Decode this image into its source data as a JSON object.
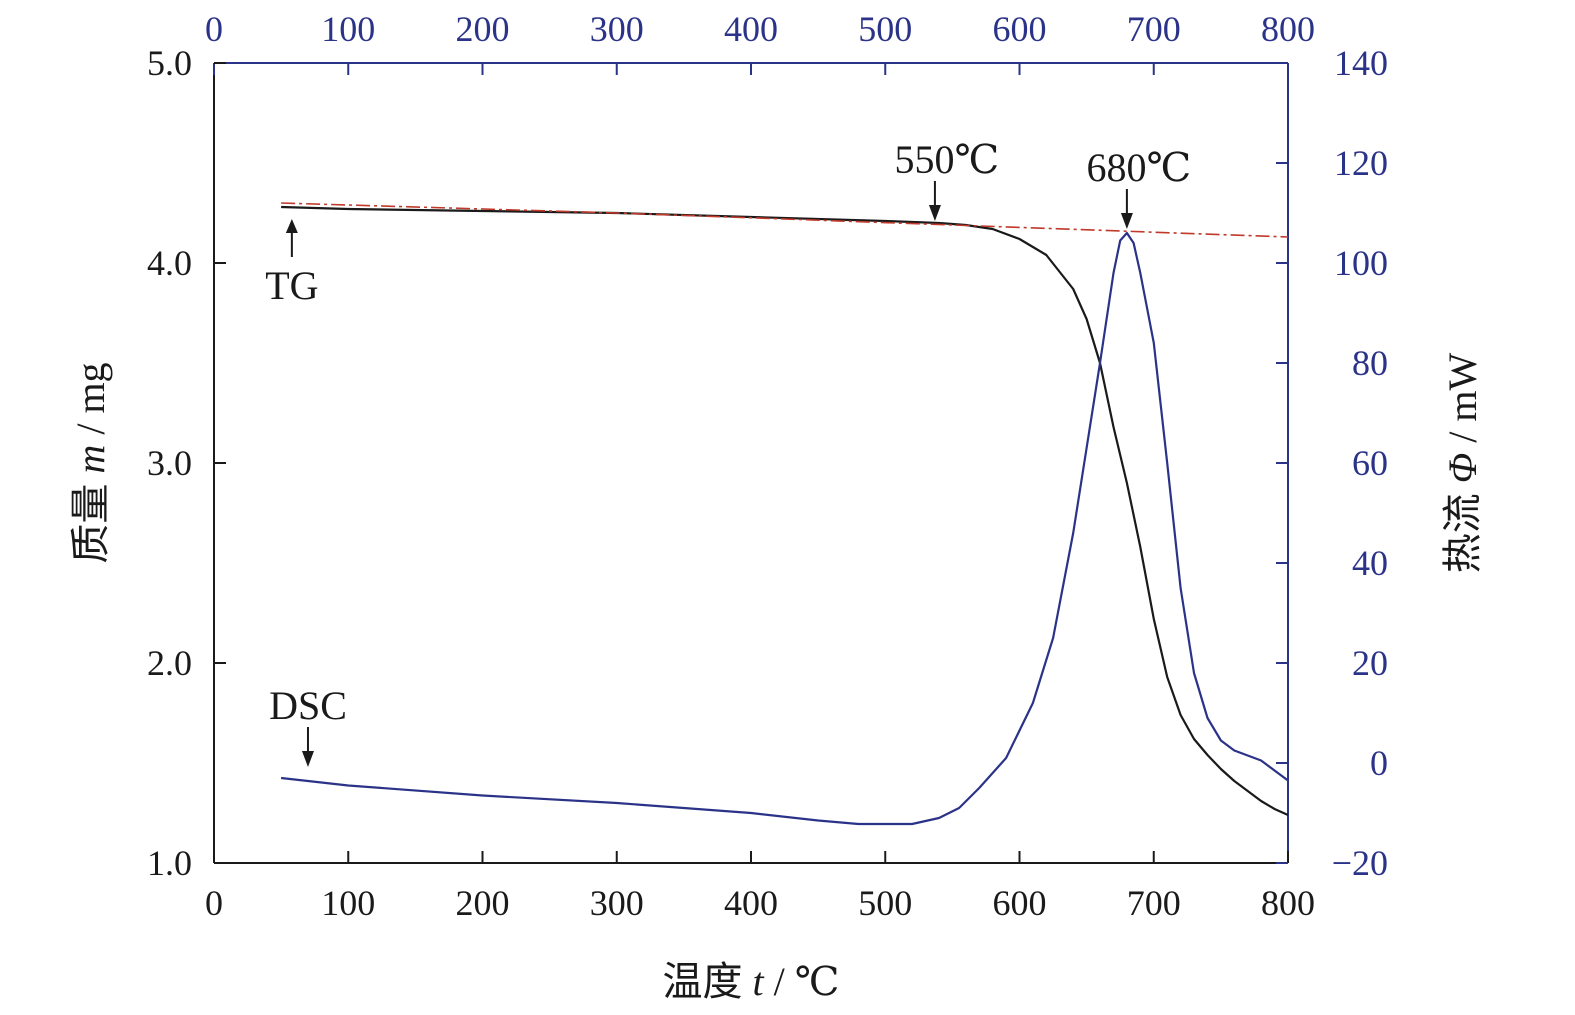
{
  "chart_data": {
    "type": "line",
    "x_bottom": {
      "label_prefix": "温度",
      "label_var": "t",
      "label_unit": "/ ℃",
      "range": [
        0,
        800
      ],
      "ticks": [
        0,
        100,
        200,
        300,
        400,
        500,
        600,
        700,
        800
      ]
    },
    "x_top": {
      "range": [
        0,
        800
      ],
      "ticks": [
        0,
        100,
        200,
        300,
        400,
        500,
        600,
        700,
        800
      ]
    },
    "y_left": {
      "label_prefix": "质量",
      "label_var": "m",
      "label_unit": "/ mg",
      "range": [
        1.0,
        5.0
      ],
      "ticks": [
        "1.0",
        "2.0",
        "3.0",
        "4.0",
        "5.0"
      ]
    },
    "y_right": {
      "label_prefix": "热流",
      "label_var": "Φ",
      "label_unit": "/ mW",
      "range": [
        -20,
        140
      ],
      "ticks": [
        "−20",
        "0",
        "20",
        "40",
        "60",
        "80",
        "100",
        "120",
        "140"
      ]
    },
    "colors": {
      "tg": "#1a1a1a",
      "dsc": "#2b3388",
      "baseline": "#c0392b",
      "axis_left": "#1a1a1a",
      "axis_right": "#2b3388"
    },
    "series": [
      {
        "name": "TG",
        "axis": "left",
        "points": [
          [
            50,
            4.28
          ],
          [
            100,
            4.27
          ],
          [
            200,
            4.26
          ],
          [
            300,
            4.25
          ],
          [
            400,
            4.23
          ],
          [
            500,
            4.21
          ],
          [
            540,
            4.2
          ],
          [
            560,
            4.19
          ],
          [
            580,
            4.17
          ],
          [
            600,
            4.12
          ],
          [
            620,
            4.04
          ],
          [
            640,
            3.87
          ],
          [
            650,
            3.72
          ],
          [
            660,
            3.5
          ],
          [
            670,
            3.18
          ],
          [
            680,
            2.9
          ],
          [
            690,
            2.58
          ],
          [
            700,
            2.22
          ],
          [
            710,
            1.93
          ],
          [
            720,
            1.74
          ],
          [
            730,
            1.62
          ],
          [
            740,
            1.54
          ],
          [
            750,
            1.47
          ],
          [
            760,
            1.41
          ],
          [
            770,
            1.36
          ],
          [
            780,
            1.31
          ],
          [
            790,
            1.27
          ],
          [
            800,
            1.24
          ]
        ]
      },
      {
        "name": "DSC",
        "axis": "right",
        "points": [
          [
            50,
            -3
          ],
          [
            100,
            -4.5
          ],
          [
            200,
            -6.5
          ],
          [
            300,
            -8
          ],
          [
            400,
            -10
          ],
          [
            450,
            -11.5
          ],
          [
            480,
            -12.2
          ],
          [
            520,
            -12.2
          ],
          [
            540,
            -11
          ],
          [
            555,
            -9
          ],
          [
            570,
            -5
          ],
          [
            590,
            1
          ],
          [
            610,
            12
          ],
          [
            625,
            25
          ],
          [
            640,
            46
          ],
          [
            650,
            63
          ],
          [
            660,
            80
          ],
          [
            670,
            98
          ],
          [
            675,
            104.5
          ],
          [
            680,
            106
          ],
          [
            685,
            104
          ],
          [
            690,
            98
          ],
          [
            700,
            84
          ],
          [
            710,
            60
          ],
          [
            720,
            35
          ],
          [
            730,
            18
          ],
          [
            740,
            9
          ],
          [
            750,
            4.5
          ],
          [
            760,
            2.5
          ],
          [
            780,
            0.5
          ],
          [
            800,
            -3.5
          ]
        ]
      },
      {
        "name": "baseline",
        "axis": "left",
        "dashed": true,
        "points": [
          [
            50,
            4.3
          ],
          [
            300,
            4.25
          ],
          [
            550,
            4.19
          ],
          [
            800,
            4.13
          ]
        ]
      }
    ],
    "annotations": [
      {
        "text": "TG",
        "arrow_x": 58,
        "arrow_y": 4.22,
        "direction": "up"
      },
      {
        "text": "DSC",
        "arrow_x": 70,
        "arrow_y": 1.48,
        "direction": "down"
      },
      {
        "text": "550℃",
        "arrow_x": 537,
        "arrow_y": 4.21,
        "direction": "down"
      },
      {
        "text": "680℃",
        "arrow_x": 680,
        "arrow_y": 4.17,
        "direction": "down"
      }
    ]
  }
}
